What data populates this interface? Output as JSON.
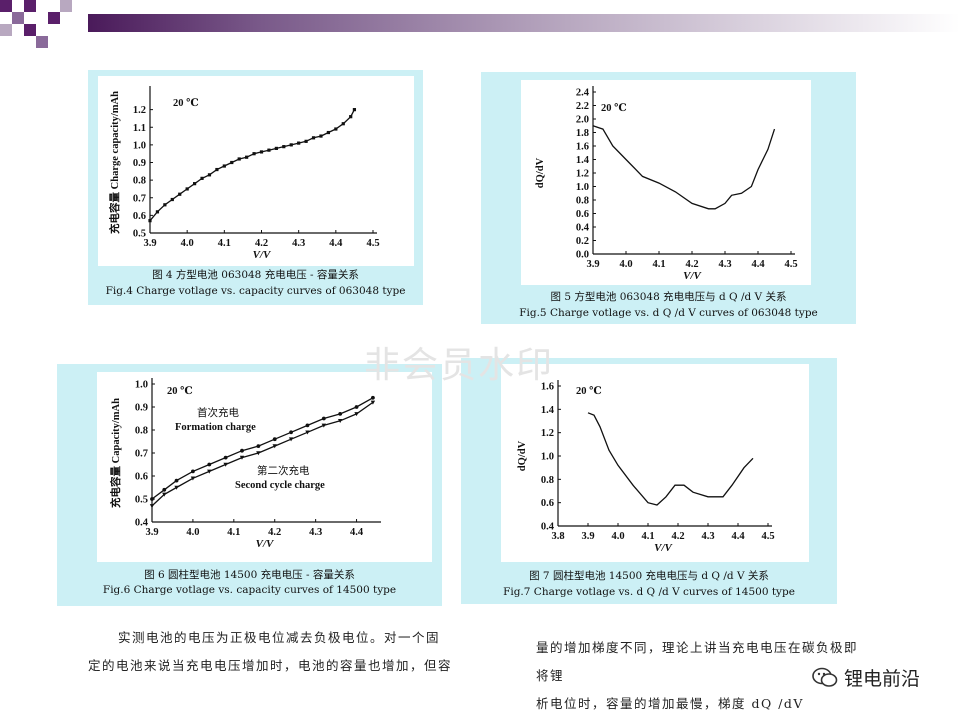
{
  "watermark": "非会员水印",
  "logo": "锂电前沿",
  "figures": [
    {
      "caption_cn": "图 4   方型电池 063048 充电电压 - 容量关系",
      "caption_en": "Fig.4   Charge votlage vs. capacity curves  of 063048 type",
      "temp_label": "20 ℃",
      "xlabel": "V/V",
      "ylabel": "充电容量 Charge capacity/mAh"
    },
    {
      "caption_cn": "图 5   方型电池 063048 充电电压与 d Q /d V 关系",
      "caption_en": "Fig.5   Charge votlage vs. d Q /d V curves  of 063048 type",
      "temp_label": "20 ℃",
      "xlabel": "V/V",
      "ylabel": "dQ/dV"
    },
    {
      "caption_cn": "图 6   圆柱型电池 14500 充电电压 - 容量关系",
      "caption_en": "Fig.6   Charge votlage vs. capacity curves  of 14500 type",
      "temp_label": "20 ℃",
      "xlabel": "V/V",
      "ylabel": "充电容量 Capacity/mAh",
      "label1_cn": "首次充电",
      "label1_en": "Formation charge",
      "label2_cn": "第二次充电",
      "label2_en": "Second cycle charge"
    },
    {
      "caption_cn": "图 7   圆柱型电池 14500 充电电压与 d Q /d V 关系",
      "caption_en": "Fig.7   Charge votlage vs. d Q /d V curves  of 14500 type",
      "temp_label": "20 ℃",
      "xlabel": "V/V",
      "ylabel": "dQ/dV"
    }
  ],
  "paragraph_left": [
    "实测电池的电压为正极电位减去负极电位。对一个固",
    "定的电池来说当充电电压增加时，电池的容量也增加，但容"
  ],
  "paragraph_right": [
    "量的增加梯度不同，理论上讲当充电电压在碳负极即将锂",
    "析电位时，容量的增加最慢，梯度 dQ /dV"
  ],
  "chart_data": [
    {
      "type": "line",
      "xlim": [
        3.9,
        4.5
      ],
      "ylim": [
        0.5,
        1.3
      ],
      "xticks": [
        "3.9",
        "4.0",
        "4.1",
        "4.2",
        "4.3",
        "4.4",
        "4.5"
      ],
      "yticks": [
        "0.5",
        "0.6",
        "0.7",
        "0.8",
        "0.9",
        "1.0",
        "1.1",
        "1.2"
      ],
      "series": [
        {
          "x": [
            3.9,
            3.92,
            3.94,
            3.96,
            3.98,
            4.0,
            4.02,
            4.04,
            4.06,
            4.08,
            4.1,
            4.12,
            4.14,
            4.16,
            4.18,
            4.2,
            4.22,
            4.24,
            4.26,
            4.28,
            4.3,
            4.32,
            4.34,
            4.36,
            4.38,
            4.4,
            4.42,
            4.44,
            4.45
          ],
          "y": [
            0.57,
            0.62,
            0.66,
            0.69,
            0.72,
            0.75,
            0.78,
            0.81,
            0.83,
            0.86,
            0.88,
            0.9,
            0.92,
            0.93,
            0.95,
            0.96,
            0.97,
            0.98,
            0.99,
            1.0,
            1.01,
            1.02,
            1.04,
            1.05,
            1.07,
            1.09,
            1.12,
            1.16,
            1.2
          ]
        }
      ]
    },
    {
      "type": "line",
      "xlim": [
        3.9,
        4.5
      ],
      "ylim": [
        0.0,
        2.4
      ],
      "xticks": [
        "3.9",
        "4.0",
        "4.1",
        "4.2",
        "4.3",
        "4.4",
        "4.5"
      ],
      "yticks": [
        "0.0",
        "0.2",
        "0.4",
        "0.6",
        "0.8",
        "1.0",
        "1.2",
        "1.4",
        "1.6",
        "1.8",
        "2.0",
        "2.2",
        "2.4"
      ],
      "series": [
        {
          "x": [
            3.9,
            3.93,
            3.96,
            4.0,
            4.05,
            4.1,
            4.15,
            4.2,
            4.25,
            4.27,
            4.3,
            4.32,
            4.35,
            4.38,
            4.4,
            4.43,
            4.45
          ],
          "y": [
            1.9,
            1.85,
            1.6,
            1.4,
            1.15,
            1.05,
            0.92,
            0.75,
            0.67,
            0.67,
            0.75,
            0.87,
            0.9,
            1.0,
            1.25,
            1.55,
            1.85
          ]
        }
      ]
    },
    {
      "type": "line",
      "xlim": [
        3.9,
        4.45
      ],
      "ylim": [
        0.4,
        1.0
      ],
      "xticks": [
        "3.9",
        "4.0",
        "4.1",
        "4.2",
        "4.3",
        "4.4"
      ],
      "yticks": [
        "0.4",
        "0.5",
        "0.6",
        "0.7",
        "0.8",
        "0.9",
        "1.0"
      ],
      "series": [
        {
          "name": "Formation charge",
          "x": [
            3.9,
            3.93,
            3.96,
            4.0,
            4.04,
            4.08,
            4.12,
            4.16,
            4.2,
            4.24,
            4.28,
            4.32,
            4.36,
            4.4,
            4.44
          ],
          "y": [
            0.5,
            0.54,
            0.58,
            0.62,
            0.65,
            0.68,
            0.71,
            0.73,
            0.76,
            0.79,
            0.82,
            0.85,
            0.87,
            0.9,
            0.94
          ]
        },
        {
          "name": "Second cycle charge",
          "x": [
            3.9,
            3.93,
            3.96,
            4.0,
            4.04,
            4.08,
            4.12,
            4.16,
            4.2,
            4.24,
            4.28,
            4.32,
            4.36,
            4.4,
            4.44
          ],
          "y": [
            0.47,
            0.52,
            0.55,
            0.59,
            0.62,
            0.65,
            0.68,
            0.7,
            0.73,
            0.76,
            0.79,
            0.82,
            0.84,
            0.87,
            0.92
          ]
        }
      ]
    },
    {
      "type": "line",
      "xlim": [
        3.8,
        4.5
      ],
      "ylim": [
        0.4,
        1.6
      ],
      "xticks": [
        "3.8",
        "3.9",
        "4.0",
        "4.1",
        "4.2",
        "4.3",
        "4.4",
        "4.5"
      ],
      "yticks": [
        "0.4",
        "0.6",
        "0.8",
        "1.0",
        "1.2",
        "1.4",
        "1.6"
      ],
      "series": [
        {
          "x": [
            3.9,
            3.92,
            3.94,
            3.97,
            4.0,
            4.05,
            4.1,
            4.13,
            4.16,
            4.19,
            4.22,
            4.25,
            4.3,
            4.35,
            4.38,
            4.42,
            4.45
          ],
          "y": [
            1.37,
            1.35,
            1.25,
            1.05,
            0.92,
            0.75,
            0.6,
            0.58,
            0.65,
            0.75,
            0.75,
            0.69,
            0.65,
            0.65,
            0.75,
            0.9,
            0.98
          ]
        }
      ]
    }
  ]
}
